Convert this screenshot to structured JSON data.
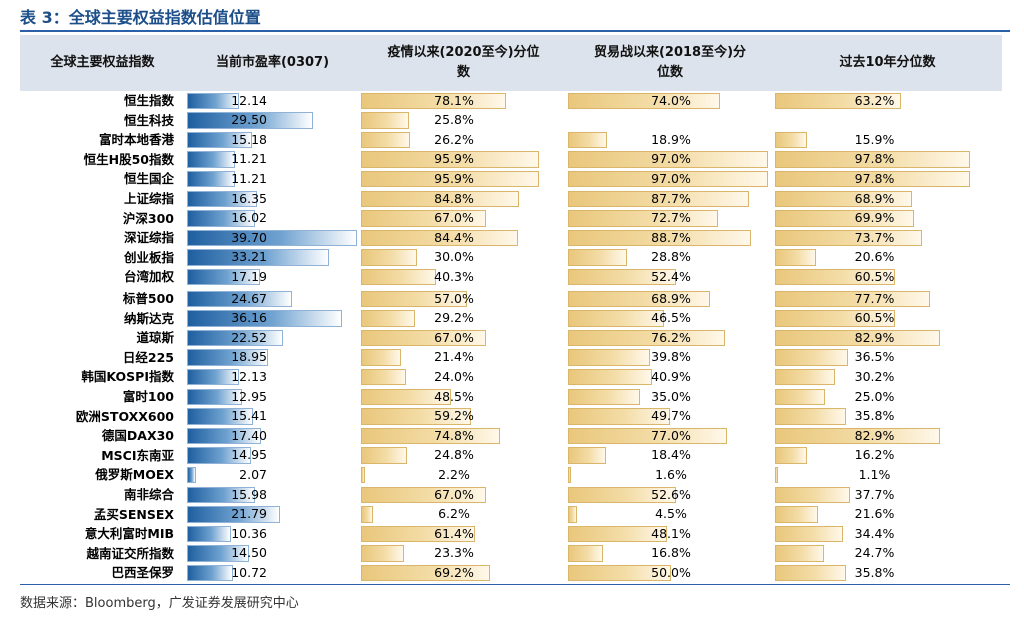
{
  "title": "表 3：全球主要权益指数估值位置",
  "headers": {
    "name": "全球主要权益指数",
    "pe": "当前市盈率(0307)",
    "covid": [
      "疫情以来(2020至今)分位",
      "数"
    ],
    "trade": [
      "贸易战以来(2018至今)分",
      "位数"
    ],
    "tenyr": "过去10年分位数"
  },
  "colors": {
    "pe_bar": "#1f5fa0",
    "pct_bar": "#e9c77c",
    "header_bg": "#dde3ec",
    "title": "#1c4e8a"
  },
  "rows": [
    {
      "name": "恒生指数",
      "pe": 12.14,
      "pe_text": "12.14",
      "covid": 78.1,
      "covid_text": "78.1%",
      "trade": 74.0,
      "trade_text": "74.0%",
      "tenyr": 63.2,
      "tenyr_text": "63.2%"
    },
    {
      "name": "恒生科技",
      "pe": 29.5,
      "pe_text": "29.50",
      "covid": 25.8,
      "covid_text": "25.8%",
      "trade": null,
      "trade_text": "",
      "tenyr": null,
      "tenyr_text": ""
    },
    {
      "name": "富时本地香港",
      "pe": 15.18,
      "pe_text": "15.18",
      "covid": 26.2,
      "covid_text": "26.2%",
      "trade": 18.9,
      "trade_text": "18.9%",
      "tenyr": 15.9,
      "tenyr_text": "15.9%"
    },
    {
      "name": "恒生H股50指数",
      "pe": 11.21,
      "pe_text": "11.21",
      "covid": 95.9,
      "covid_text": "95.9%",
      "trade": 97.0,
      "trade_text": "97.0%",
      "tenyr": 97.8,
      "tenyr_text": "97.8%"
    },
    {
      "name": "恒生国企",
      "pe": 11.21,
      "pe_text": "11.21",
      "covid": 95.9,
      "covid_text": "95.9%",
      "trade": 97.0,
      "trade_text": "97.0%",
      "tenyr": 97.8,
      "tenyr_text": "97.8%"
    },
    {
      "name": "上证综指",
      "pe": 16.35,
      "pe_text": "16.35",
      "covid": 84.8,
      "covid_text": "84.8%",
      "trade": 87.7,
      "trade_text": "87.7%",
      "tenyr": 68.9,
      "tenyr_text": "68.9%"
    },
    {
      "name": "沪深300",
      "pe": 16.02,
      "pe_text": "16.02",
      "covid": 67.0,
      "covid_text": "67.0%",
      "trade": 72.7,
      "trade_text": "72.7%",
      "tenyr": 69.9,
      "tenyr_text": "69.9%"
    },
    {
      "name": "深证综指",
      "pe": 39.7,
      "pe_text": "39.70",
      "covid": 84.4,
      "covid_text": "84.4%",
      "trade": 88.7,
      "trade_text": "88.7%",
      "tenyr": 73.7,
      "tenyr_text": "73.7%"
    },
    {
      "name": "创业板指",
      "pe": 33.21,
      "pe_text": "33.21",
      "covid": 30.0,
      "covid_text": "30.0%",
      "trade": 28.8,
      "trade_text": "28.8%",
      "tenyr": 20.6,
      "tenyr_text": "20.6%"
    },
    {
      "name": "台湾加权",
      "pe": 17.19,
      "pe_text": "17.19",
      "covid": 40.3,
      "covid_text": "40.3%",
      "trade": 52.4,
      "trade_text": "52.4%",
      "tenyr": 60.5,
      "tenyr_text": "60.5%"
    },
    {
      "name": "标普500",
      "pe": 24.67,
      "pe_text": "24.67",
      "covid": 57.0,
      "covid_text": "57.0%",
      "trade": 68.9,
      "trade_text": "68.9%",
      "tenyr": 77.7,
      "tenyr_text": "77.7%"
    },
    {
      "name": "纳斯达克",
      "pe": 36.16,
      "pe_text": "36.16",
      "covid": 29.2,
      "covid_text": "29.2%",
      "trade": 46.5,
      "trade_text": "46.5%",
      "tenyr": 60.5,
      "tenyr_text": "60.5%"
    },
    {
      "name": "道琼斯",
      "pe": 22.52,
      "pe_text": "22.52",
      "covid": 67.0,
      "covid_text": "67.0%",
      "trade": 76.2,
      "trade_text": "76.2%",
      "tenyr": 82.9,
      "tenyr_text": "82.9%"
    },
    {
      "name": "日经225",
      "pe": 18.95,
      "pe_text": "18.95",
      "covid": 21.4,
      "covid_text": "21.4%",
      "trade": 39.8,
      "trade_text": "39.8%",
      "tenyr": 36.5,
      "tenyr_text": "36.5%"
    },
    {
      "name": "韩国KOSPI指数",
      "pe": 12.13,
      "pe_text": "12.13",
      "covid": 24.0,
      "covid_text": "24.0%",
      "trade": 40.9,
      "trade_text": "40.9%",
      "tenyr": 30.2,
      "tenyr_text": "30.2%"
    },
    {
      "name": "富时100",
      "pe": 12.95,
      "pe_text": "12.95",
      "covid": 48.5,
      "covid_text": "48.5%",
      "trade": 35.0,
      "trade_text": "35.0%",
      "tenyr": 25.0,
      "tenyr_text": "25.0%"
    },
    {
      "name": "欧洲STOXX600",
      "pe": 15.41,
      "pe_text": "15.41",
      "covid": 59.2,
      "covid_text": "59.2%",
      "trade": 49.7,
      "trade_text": "49.7%",
      "tenyr": 35.8,
      "tenyr_text": "35.8%"
    },
    {
      "name": "德国DAX30",
      "pe": 17.4,
      "pe_text": "17.40",
      "covid": 74.8,
      "covid_text": "74.8%",
      "trade": 77.0,
      "trade_text": "77.0%",
      "tenyr": 82.9,
      "tenyr_text": "82.9%"
    },
    {
      "name": "MSCI东南亚",
      "pe": 14.95,
      "pe_text": "14.95",
      "covid": 24.8,
      "covid_text": "24.8%",
      "trade": 18.4,
      "trade_text": "18.4%",
      "tenyr": 16.2,
      "tenyr_text": "16.2%"
    },
    {
      "name": "俄罗斯MOEX",
      "pe": 2.07,
      "pe_text": "2.07",
      "covid": 2.2,
      "covid_text": "2.2%",
      "trade": 1.6,
      "trade_text": "1.6%",
      "tenyr": 1.1,
      "tenyr_text": "1.1%"
    },
    {
      "name": "南非综合",
      "pe": 15.98,
      "pe_text": "15.98",
      "covid": 67.0,
      "covid_text": "67.0%",
      "trade": 52.6,
      "trade_text": "52.6%",
      "tenyr": 37.7,
      "tenyr_text": "37.7%"
    },
    {
      "name": "孟买SENSEX",
      "pe": 21.79,
      "pe_text": "21.79",
      "covid": 6.2,
      "covid_text": "6.2%",
      "trade": 4.5,
      "trade_text": "4.5%",
      "tenyr": 21.6,
      "tenyr_text": "21.6%"
    },
    {
      "name": "意大利富时MIB",
      "pe": 10.36,
      "pe_text": "10.36",
      "covid": 61.4,
      "covid_text": "61.4%",
      "trade": 48.1,
      "trade_text": "48.1%",
      "tenyr": 34.4,
      "tenyr_text": "34.4%"
    },
    {
      "name": "越南证交所指数",
      "pe": 14.5,
      "pe_text": "14.50",
      "covid": 23.3,
      "covid_text": "23.3%",
      "trade": 16.8,
      "trade_text": "16.8%",
      "tenyr": 24.7,
      "tenyr_text": "24.7%"
    },
    {
      "name": "巴西圣保罗",
      "pe": 10.72,
      "pe_text": "10.72",
      "covid": 69.2,
      "covid_text": "69.2%",
      "trade": 50.0,
      "trade_text": "50.0%",
      "tenyr": 35.8,
      "tenyr_text": "35.8%"
    }
  ],
  "source": "数据来源：Bloomberg，广发证券发展研究中心"
}
